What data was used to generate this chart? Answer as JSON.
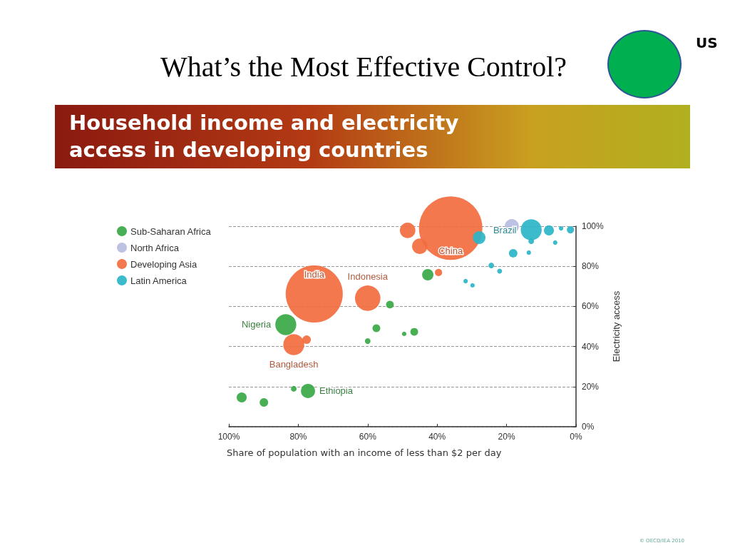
{
  "chart_data": {
    "type": "bubble",
    "title": "What’s the Most Effective Control?",
    "subtitle": "Household income and electricity access in developing countries",
    "xlabel": "Share of population with an income of less than $2 per day",
    "ylabel": "Electricity access",
    "xlim": [
      100,
      0
    ],
    "xticks": [
      {
        "value": 100,
        "label": "100%"
      },
      {
        "value": 80,
        "label": "80%"
      },
      {
        "value": 60,
        "label": "60%"
      },
      {
        "value": 40,
        "label": "40%"
      },
      {
        "value": 20,
        "label": "20%"
      },
      {
        "value": 0,
        "label": "0%"
      }
    ],
    "ylim": [
      0,
      100
    ],
    "yticks": [
      {
        "value": 0,
        "label": "0%"
      },
      {
        "value": 20,
        "label": "20%"
      },
      {
        "value": 40,
        "label": "40%"
      },
      {
        "value": 60,
        "label": "60%"
      },
      {
        "value": 80,
        "label": "80%"
      },
      {
        "value": 100,
        "label": "100%"
      }
    ],
    "grid": "y",
    "legend": "top left",
    "series": [
      {
        "name": "Sub-Saharan Africa",
        "color": "#3aa845",
        "x": [
          83.6,
          77.2,
          81.3,
          96.3,
          89.9,
          53.6,
          57.5,
          60.0,
          46.6,
          49.5,
          42.7
        ],
        "values": [
          50.9,
          17.8,
          18.9,
          14.6,
          12.1,
          60.9,
          49.1,
          42.7,
          47.3,
          46.3,
          75.8
        ],
        "sizes": [
          0.11,
          0.05,
          0.008,
          0.025,
          0.018,
          0.015,
          0.015,
          0.008,
          0.015,
          0.005,
          0.032
        ]
      },
      {
        "name": "North Africa",
        "color": "#b8bde0",
        "x": [
          18.5
        ],
        "values": [
          100
        ],
        "sizes": [
          0.05
        ]
      },
      {
        "name": "Developing Asia",
        "color": "#f26c3f",
        "x": [
          75.4,
          60.0,
          81.3,
          77.6,
          36.1,
          48.5,
          45.0,
          39.6
        ],
        "values": [
          66.2,
          64.1,
          40.9,
          43.4,
          99,
          97.9,
          90.0,
          76.9
        ],
        "sizes": [
          0.81,
          0.16,
          0.11,
          0.018,
          1,
          0.06,
          0.06,
          0.013
        ]
      },
      {
        "name": "Latin America",
        "color": "#2bb5c8",
        "x": [
          27.9,
          12.9,
          18.1,
          13.6,
          12.9,
          7.8,
          6.0,
          4.3,
          1.6,
          24.4,
          22.0,
          31.8,
          29.8
        ],
        "values": [
          94.3,
          98.2,
          86.5,
          86.8,
          92.5,
          97.9,
          91.8,
          98.9,
          98.2,
          80.4,
          77.6,
          72.6,
          70.5
        ],
        "sizes": [
          0.04,
          0.11,
          0.018,
          0.005,
          0.008,
          0.025,
          0.005,
          0.005,
          0.013,
          0.008,
          0.006,
          0.005,
          0.005
        ]
      }
    ],
    "annotations": [
      {
        "text": "India",
        "x": 75.4,
        "y": 66.2
      },
      {
        "text": "Indonesia",
        "x": 60.0,
        "y": 64.1
      },
      {
        "text": "Nigeria",
        "x": 83.6,
        "y": 50.9
      },
      {
        "text": "Bangladesh",
        "x": 81.3,
        "y": 40.9
      },
      {
        "text": "Ethiopia",
        "x": 77.2,
        "y": 17.8
      },
      {
        "text": "China",
        "x": 36.1,
        "y": 99
      },
      {
        "text": "Brazil",
        "x": 12.9,
        "y": 98.2
      },
      "US",
      "© OECD/IEA 2010"
    ]
  }
}
